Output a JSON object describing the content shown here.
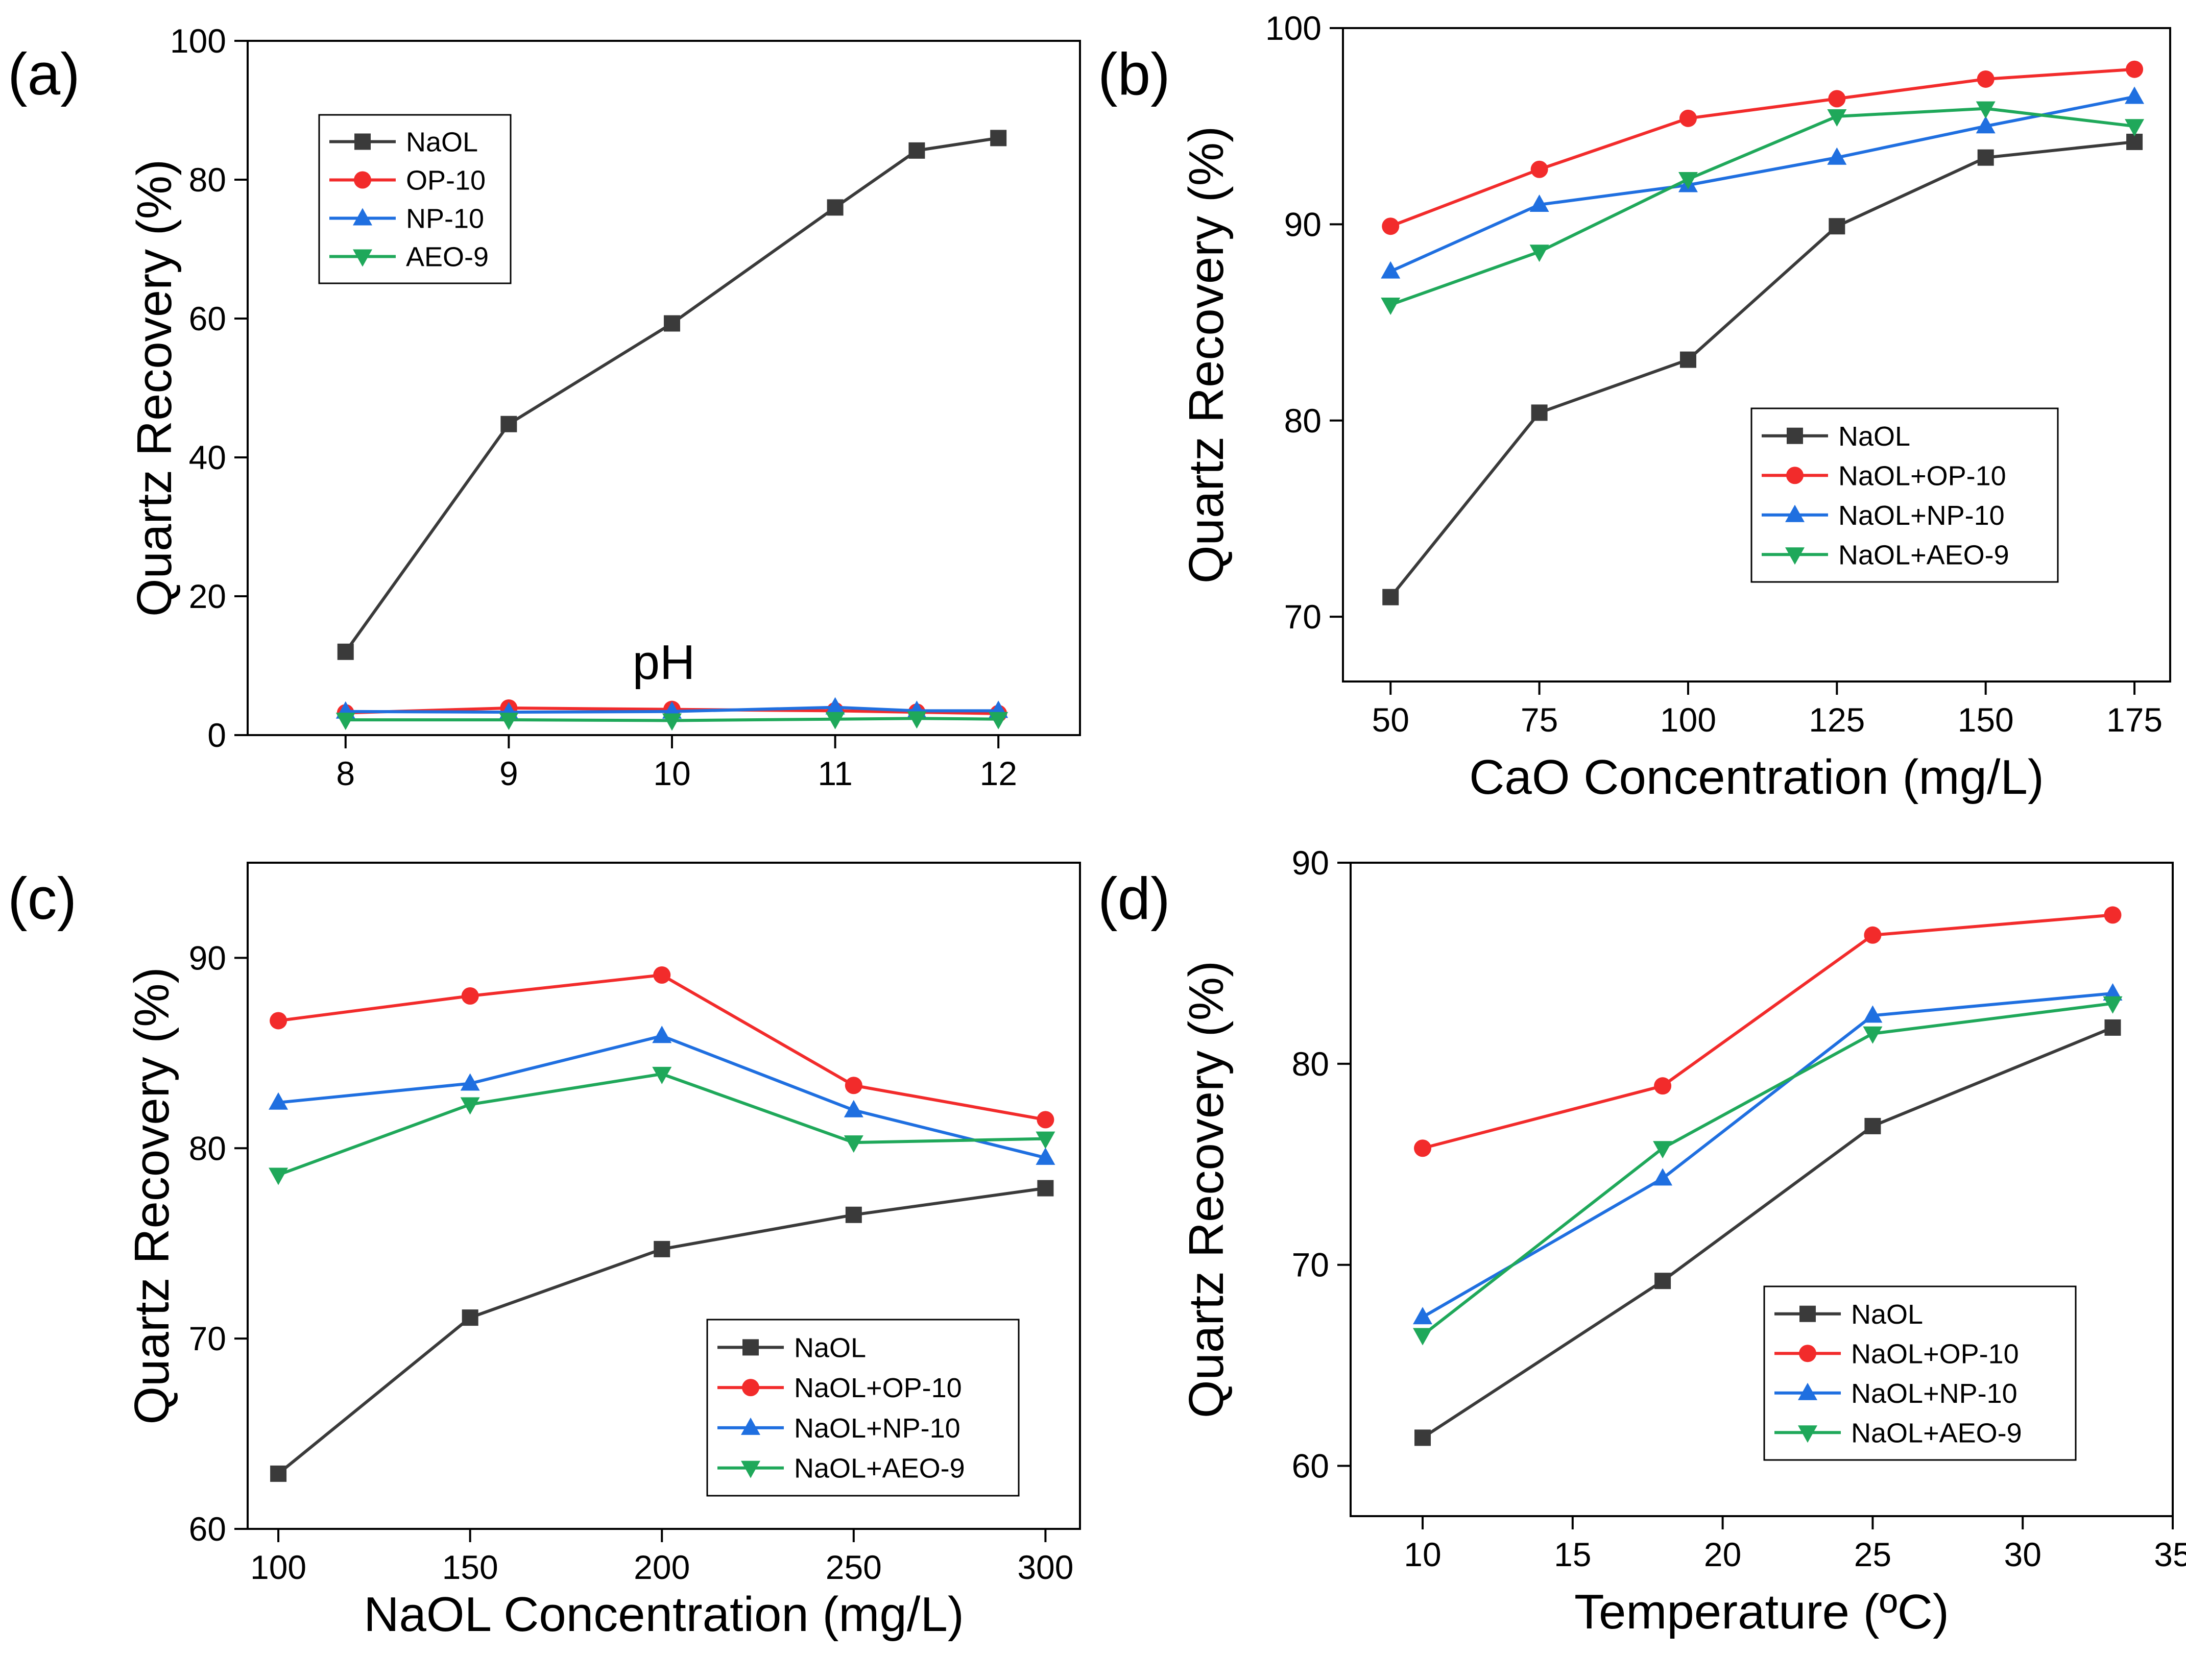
{
  "colors": {
    "NaOL": "#3a3a3a",
    "OP-10": "#f22b2b",
    "NP-10": "#1f6fe0",
    "AEO-9": "#1fa85a"
  },
  "chart_data": [
    {
      "type": "line",
      "panel": "(a)",
      "xlabel": "pH",
      "ylabel": "Quartz Recovery (%)",
      "xlim": [
        7.4,
        12.5
      ],
      "ylim": [
        0,
        100
      ],
      "xticks": [
        "8",
        "9",
        "10",
        "11",
        "12"
      ],
      "yticks": [
        "0",
        "20",
        "40",
        "60",
        "80",
        "100"
      ],
      "legend_position": "top-left",
      "series": [
        {
          "name": "NaOL",
          "key": "NaOL",
          "marker": "square",
          "x": [
            8,
            9,
            10,
            11,
            11.5,
            12
          ],
          "y": [
            12,
            44.8,
            59.3,
            76,
            84.2,
            86
          ]
        },
        {
          "name": "OP-10",
          "key": "OP-10",
          "marker": "circle",
          "x": [
            8,
            9,
            10,
            11,
            11.5,
            12
          ],
          "y": [
            3.2,
            3.9,
            3.7,
            3.5,
            3.3,
            3.1
          ]
        },
        {
          "name": "NP-10",
          "key": "NP-10",
          "marker": "triangle-up",
          "x": [
            8,
            9,
            10,
            11,
            11.5,
            12
          ],
          "y": [
            3.4,
            3.3,
            3.4,
            4.0,
            3.5,
            3.5
          ]
        },
        {
          "name": "AEO-9",
          "key": "AEO-9",
          "marker": "triangle-down",
          "x": [
            8,
            9,
            10,
            11,
            11.5,
            12
          ],
          "y": [
            2.2,
            2.2,
            2.1,
            2.3,
            2.4,
            2.3
          ]
        }
      ]
    },
    {
      "type": "line",
      "panel": "(b)",
      "xlabel": "CaO Concentration (mg/L)",
      "ylabel": "Quartz Recovery (%)",
      "xlim": [
        42,
        181
      ],
      "ylim": [
        66.7,
        100
      ],
      "xticks": [
        "50",
        "75",
        "100",
        "125",
        "150",
        "175"
      ],
      "yticks": [
        "70",
        "80",
        "90",
        "100"
      ],
      "legend_position": "bottom-right",
      "series": [
        {
          "name": "NaOL",
          "key": "NaOL",
          "marker": "square",
          "x": [
            50,
            75,
            100,
            125,
            150,
            175
          ],
          "y": [
            71,
            80.4,
            83.1,
            89.9,
            93.4,
            94.2
          ]
        },
        {
          "name": "NaOL+OP-10",
          "key": "OP-10",
          "marker": "circle",
          "x": [
            50,
            75,
            100,
            125,
            150,
            175
          ],
          "y": [
            89.9,
            92.8,
            95.4,
            96.4,
            97.4,
            97.9
          ]
        },
        {
          "name": "NaOL+NP-10",
          "key": "NP-10",
          "marker": "triangle-up",
          "x": [
            50,
            75,
            100,
            125,
            150,
            175
          ],
          "y": [
            87.6,
            91,
            92,
            93.4,
            95,
            96.5
          ]
        },
        {
          "name": "NaOL+AEO-9",
          "key": "AEO-9",
          "marker": "triangle-down",
          "x": [
            50,
            75,
            100,
            125,
            150,
            175
          ],
          "y": [
            85.9,
            88.6,
            92.3,
            95.5,
            95.9,
            95
          ]
        }
      ]
    },
    {
      "type": "line",
      "panel": "(c)",
      "xlabel": "NaOL Concentration (mg/L)",
      "ylabel": "Quartz Recovery (%)",
      "xlim": [
        92,
        309
      ],
      "ylim": [
        60,
        95
      ],
      "xticks": [
        "100",
        "150",
        "200",
        "250",
        "300"
      ],
      "yticks": [
        "60",
        "70",
        "80",
        "90"
      ],
      "legend_position": "bottom-right",
      "series": [
        {
          "name": "NaOL",
          "key": "NaOL",
          "marker": "square",
          "x": [
            100,
            150,
            200,
            250,
            300
          ],
          "y": [
            62.9,
            71.1,
            74.7,
            76.5,
            77.9
          ]
        },
        {
          "name": "NaOL+OP-10",
          "key": "OP-10",
          "marker": "circle",
          "x": [
            100,
            150,
            200,
            250,
            300
          ],
          "y": [
            86.7,
            88,
            89.1,
            83.3,
            81.5
          ]
        },
        {
          "name": "NaOL+NP-10",
          "key": "NP-10",
          "marker": "triangle-up",
          "x": [
            100,
            150,
            200,
            250,
            300
          ],
          "y": [
            82.4,
            83.4,
            85.9,
            82,
            79.5
          ]
        },
        {
          "name": "NaOL+AEO-9",
          "key": "AEO-9",
          "marker": "triangle-down",
          "x": [
            100,
            150,
            200,
            250,
            300
          ],
          "y": [
            78.6,
            82.3,
            83.9,
            80.3,
            80.5
          ]
        }
      ]
    },
    {
      "type": "line",
      "panel": "(d)",
      "xlabel": "Temperature (ºC)",
      "ylabel": "Quartz Recovery (%)",
      "xlim": [
        7.6,
        35
      ],
      "ylim": [
        57.5,
        90
      ],
      "xticks": [
        "10",
        "15",
        "20",
        "25",
        "30",
        "35"
      ],
      "yticks": [
        "60",
        "70",
        "80",
        "90"
      ],
      "legend_position": "bottom-right",
      "series": [
        {
          "name": "NaOL",
          "key": "NaOL",
          "marker": "square",
          "x": [
            10,
            18,
            25,
            33
          ],
          "y": [
            61.4,
            69.2,
            76.9,
            81.8
          ]
        },
        {
          "name": "NaOL+OP-10",
          "key": "OP-10",
          "marker": "circle",
          "x": [
            10,
            18,
            25,
            33
          ],
          "y": [
            75.8,
            78.9,
            86.4,
            87.4
          ]
        },
        {
          "name": "NaOL+NP-10",
          "key": "NP-10",
          "marker": "triangle-up",
          "x": [
            10,
            18,
            25,
            33
          ],
          "y": [
            67.4,
            74.3,
            82.4,
            83.5
          ]
        },
        {
          "name": "NaOL+AEO-9",
          "key": "AEO-9",
          "marker": "triangle-down",
          "x": [
            10,
            18,
            25,
            33
          ],
          "y": [
            66.5,
            75.8,
            81.5,
            83
          ]
        }
      ]
    }
  ]
}
